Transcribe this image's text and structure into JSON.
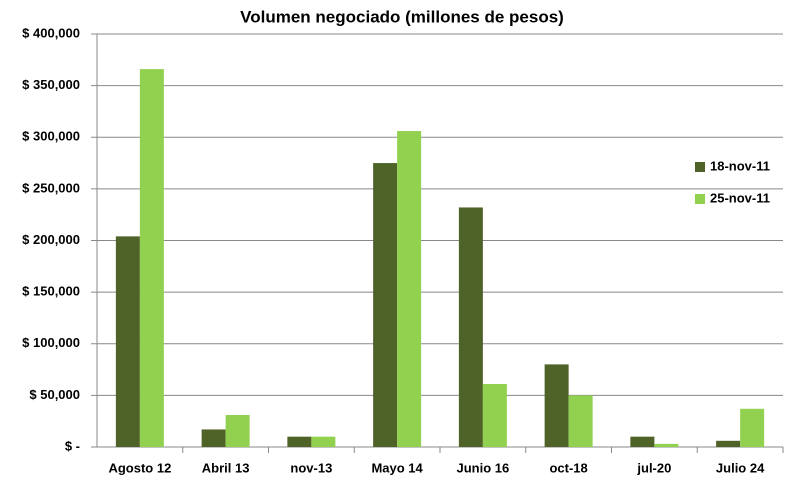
{
  "chart_data": {
    "type": "bar",
    "title": "Volumen negociado (millones de pesos)",
    "categories": [
      "Agosto 12",
      "Abril 13",
      "nov-13",
      "Mayo 14",
      "Junio 16",
      "oct-18",
      "jul-20",
      "Julio 24"
    ],
    "series": [
      {
        "name": "18-nov-11",
        "color": "#4f6228",
        "values": [
          204000,
          17000,
          10000,
          275000,
          232000,
          80000,
          10000,
          6000
        ]
      },
      {
        "name": "25-nov-11",
        "color": "#92d050",
        "values": [
          366000,
          31000,
          10000,
          306000,
          61000,
          50000,
          3000,
          37000
        ]
      }
    ],
    "ylim": [
      0,
      400000
    ],
    "yticks": [
      {
        "value": 0,
        "label": "$ -"
      },
      {
        "value": 50000,
        "label": "$ 50,000"
      },
      {
        "value": 100000,
        "label": "$ 100,000"
      },
      {
        "value": 150000,
        "label": "$ 150,000"
      },
      {
        "value": 200000,
        "label": "$ 200,000"
      },
      {
        "value": 250000,
        "label": "$ 250,000"
      },
      {
        "value": 300000,
        "label": "$ 300,000"
      },
      {
        "value": 350000,
        "label": "$ 350,000"
      },
      {
        "value": 400000,
        "label": "$ 400,000"
      }
    ],
    "grid": true,
    "legend": "right"
  }
}
